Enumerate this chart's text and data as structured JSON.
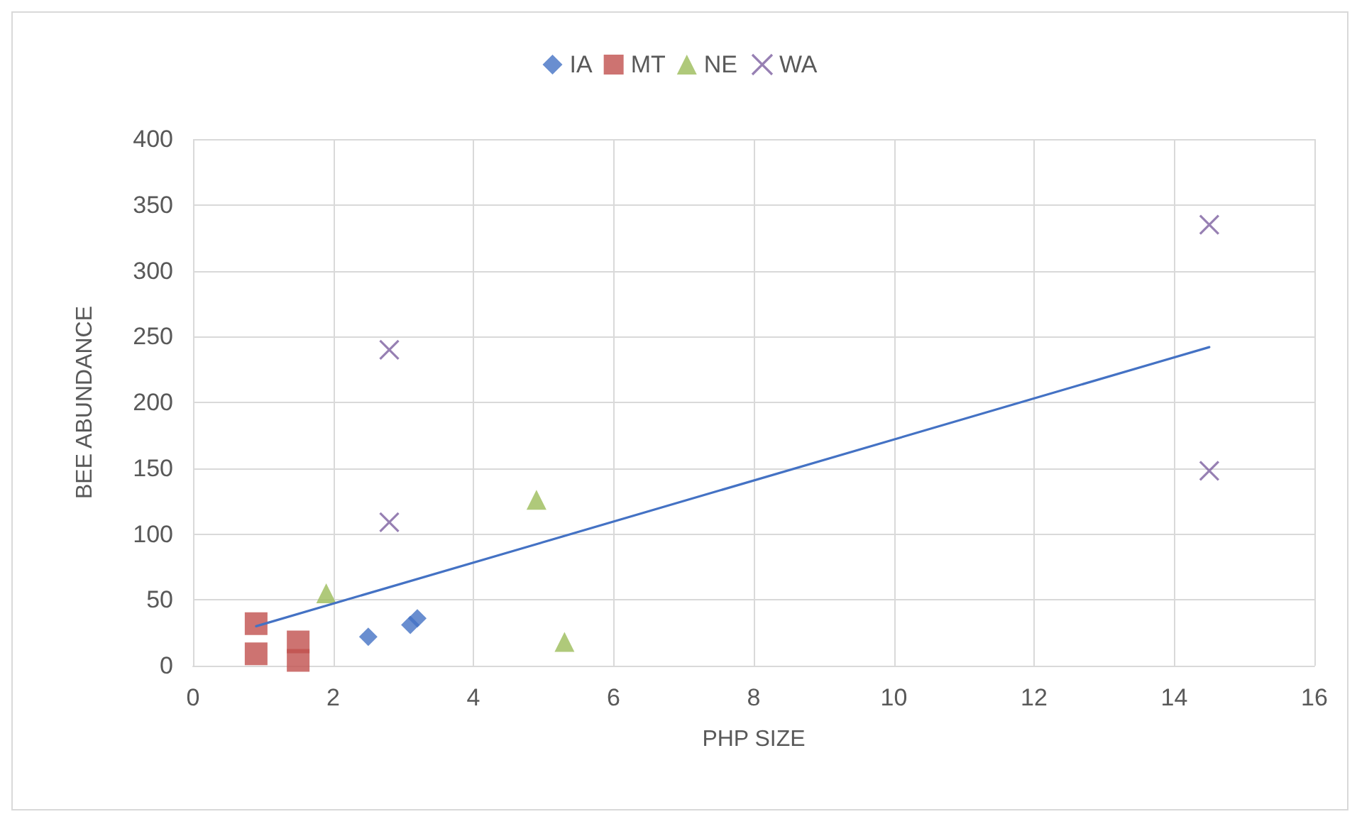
{
  "chart_data": {
    "type": "scatter",
    "xlabel": "PHP SIZE",
    "ylabel": "BEE ABUNDANCE",
    "xlim": [
      0,
      16
    ],
    "xticks": [
      0,
      2,
      4,
      6,
      8,
      10,
      12,
      14,
      16
    ],
    "ylim": [
      0,
      400
    ],
    "yticks": [
      0,
      50,
      100,
      150,
      200,
      250,
      300,
      350,
      400
    ],
    "grid": true,
    "legend": "top",
    "series": [
      {
        "name": "IA",
        "color": "#4472c4",
        "marker": "diamond",
        "x": [
          2.5,
          3.1,
          3.2
        ],
        "values": [
          22,
          31,
          36
        ]
      },
      {
        "name": "MT",
        "color": "#c0504d",
        "marker": "square",
        "x": [
          0.9,
          0.9,
          1.5,
          1.5
        ],
        "values": [
          32,
          9,
          18,
          4
        ]
      },
      {
        "name": "NE",
        "color": "#9bbb59",
        "marker": "triangle",
        "x": [
          1.9,
          4.9,
          5.3
        ],
        "values": [
          55,
          126,
          18
        ]
      },
      {
        "name": "WA",
        "color": "#7d60a0",
        "marker": "cross",
        "x": [
          2.8,
          2.8,
          14.5,
          14.5
        ],
        "values": [
          240,
          109,
          335,
          148
        ]
      },
      {
        "type": "line",
        "color": "#4472c4",
        "marker": "none",
        "line_style": "solid",
        "x": [
          0.9,
          14.5
        ],
        "values": [
          30,
          242
        ]
      }
    ]
  }
}
